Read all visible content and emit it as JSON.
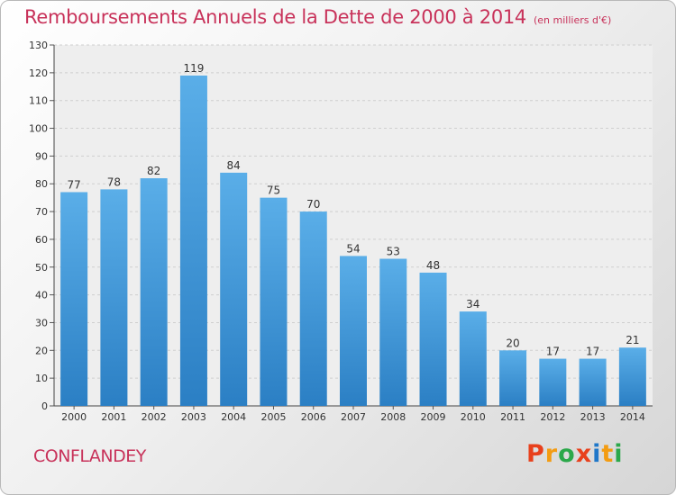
{
  "header": {
    "title": "Remboursements Annuels de la Dette de 2000 à 2014",
    "subtitle": "(en milliers d'€)"
  },
  "footer": {
    "commune": "CONFLANDEY",
    "logo_text": "Proxiti"
  },
  "colors": {
    "title": "#c8325a",
    "bar_top": "#5aaee8",
    "bar_bottom": "#2b7fc4",
    "logo": [
      "#e8401c",
      "#f39c12",
      "#2ba84a",
      "#e8401c",
      "#1f77c9",
      "#f39c12",
      "#2ba84a"
    ]
  },
  "chart_data": {
    "type": "bar",
    "categories": [
      "2000",
      "2001",
      "2002",
      "2003",
      "2004",
      "2005",
      "2006",
      "2007",
      "2008",
      "2009",
      "2010",
      "2011",
      "2012",
      "2013",
      "2014"
    ],
    "values": [
      77,
      78,
      82,
      119,
      84,
      75,
      70,
      54,
      53,
      48,
      34,
      20,
      17,
      17,
      21
    ],
    "title": "Remboursements Annuels de la Dette de 2000 à 2014",
    "subtitle": "(en milliers d'€)",
    "ylim": [
      0,
      130
    ],
    "yticks": [
      0,
      10,
      20,
      30,
      40,
      50,
      60,
      70,
      80,
      90,
      100,
      110,
      120,
      130
    ],
    "grid": true,
    "legend": "none"
  }
}
